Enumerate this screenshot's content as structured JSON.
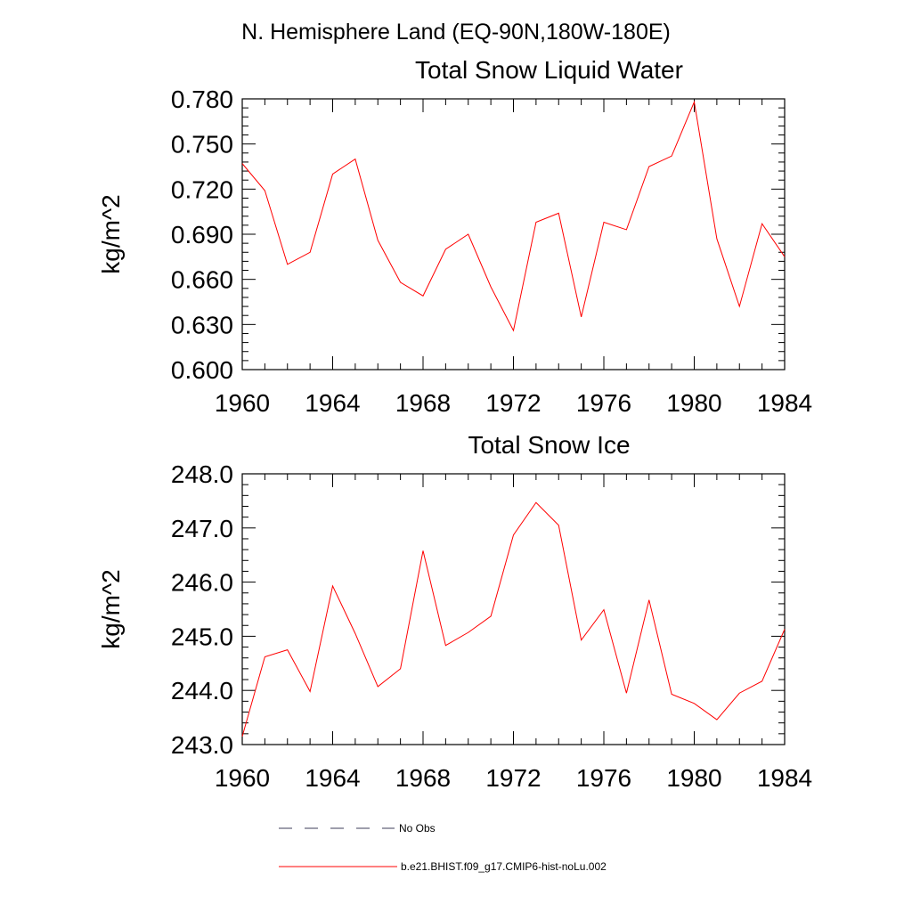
{
  "suptitle": "N. Hemisphere Land (EQ-90N,180W-180E)",
  "colors": {
    "series": "#ff0000",
    "axis": "#000000",
    "noobs": "#3c3c5a"
  },
  "legend": {
    "items": [
      {
        "label": "No Obs",
        "style": "dashed"
      },
      {
        "label": "b.e21.BHIST.f09_g17.CMIP6-hist-noLu.002",
        "style": "solid"
      }
    ]
  },
  "chart_data": [
    {
      "type": "line",
      "title": "Total Snow Liquid Water",
      "ylabel": "kg/m^2",
      "xlabel": "",
      "xlim": [
        1960,
        1984
      ],
      "ylim": [
        0.6,
        0.78
      ],
      "xticks": [
        "1960",
        "1964",
        "1968",
        "1972",
        "1976",
        "1980",
        "1984"
      ],
      "yticks": [
        "0.600",
        "0.630",
        "0.660",
        "0.690",
        "0.720",
        "0.750",
        "0.780"
      ],
      "x": [
        1960,
        1961,
        1962,
        1963,
        1964,
        1965,
        1966,
        1967,
        1968,
        1969,
        1970,
        1971,
        1972,
        1973,
        1974,
        1975,
        1976,
        1977,
        1978,
        1979,
        1980,
        1981,
        1982,
        1983,
        1984
      ],
      "series": [
        {
          "name": "b.e21.BHIST.f09_g17.CMIP6-hist-noLu.002",
          "values": [
            0.737,
            0.719,
            0.67,
            0.678,
            0.73,
            0.74,
            0.686,
            0.658,
            0.649,
            0.68,
            0.69,
            0.655,
            0.626,
            0.698,
            0.704,
            0.635,
            0.698,
            0.693,
            0.735,
            0.742,
            0.778,
            0.687,
            0.642,
            0.697,
            0.675
          ]
        }
      ]
    },
    {
      "type": "line",
      "title": "Total Snow Ice",
      "ylabel": "kg/m^2",
      "xlabel": "",
      "xlim": [
        1960,
        1984
      ],
      "ylim": [
        243.0,
        248.0
      ],
      "xticks": [
        "1960",
        "1964",
        "1968",
        "1972",
        "1976",
        "1980",
        "1984"
      ],
      "yticks": [
        "243.0",
        "244.0",
        "245.0",
        "246.0",
        "247.0",
        "248.0"
      ],
      "x": [
        1960,
        1961,
        1962,
        1963,
        1964,
        1965,
        1966,
        1967,
        1968,
        1969,
        1970,
        1971,
        1972,
        1973,
        1974,
        1975,
        1976,
        1977,
        1978,
        1979,
        1980,
        1981,
        1982,
        1983,
        1984
      ],
      "series": [
        {
          "name": "b.e21.BHIST.f09_g17.CMIP6-hist-noLu.002",
          "values": [
            243.15,
            244.62,
            244.75,
            243.98,
            245.93,
            245.05,
            244.07,
            244.4,
            246.58,
            244.83,
            245.07,
            245.37,
            246.87,
            247.47,
            247.05,
            244.93,
            245.49,
            243.95,
            245.67,
            243.93,
            243.76,
            243.46,
            243.95,
            244.17,
            245.13
          ]
        }
      ]
    }
  ]
}
